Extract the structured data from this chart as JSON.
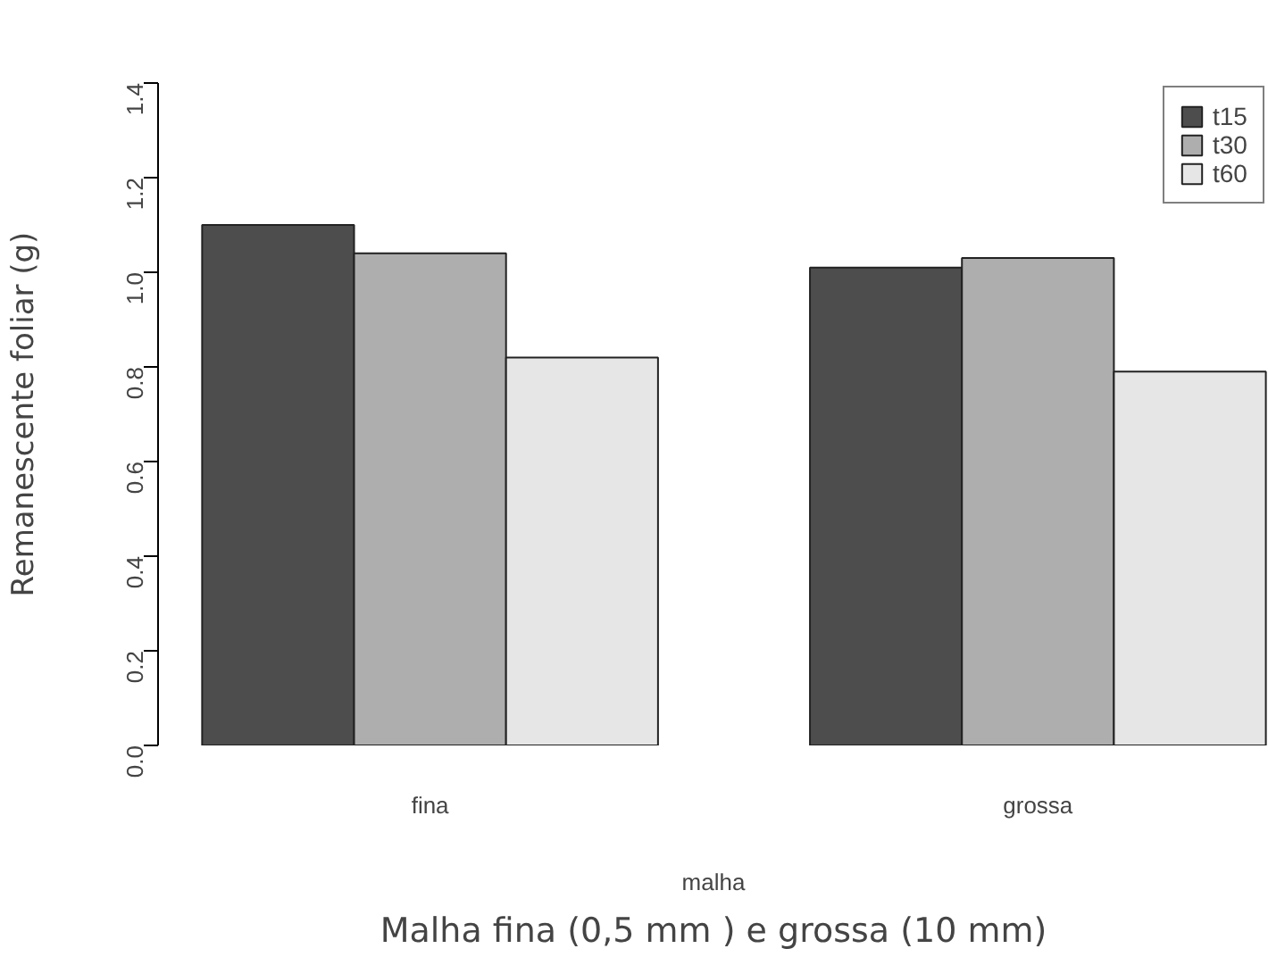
{
  "chart_data": {
    "type": "bar",
    "xlabel": "malha",
    "ylabel": "Remanescente foliar (g)",
    "categories": [
      "fina",
      "grossa"
    ],
    "series": [
      {
        "name": "t15",
        "color": "#4d4d4d",
        "values": [
          1.1,
          1.01
        ]
      },
      {
        "name": "t30",
        "color": "#aeaeae",
        "values": [
          1.04,
          1.03
        ]
      },
      {
        "name": "t60",
        "color": "#e6e6e6",
        "values": [
          0.82,
          0.79
        ]
      }
    ],
    "ylim": [
      0,
      1.4
    ],
    "yticks": [
      {
        "value": 0,
        "label": "0.0"
      },
      0.2,
      0.4,
      0.6,
      0.8,
      {
        "value": 1,
        "label": "1.0"
      },
      1.2,
      1.4
    ],
    "grid": false,
    "legend": "top right",
    "annotations": [
      "Malha fina (0,5 mm ) e grossa (10 mm)"
    ]
  }
}
